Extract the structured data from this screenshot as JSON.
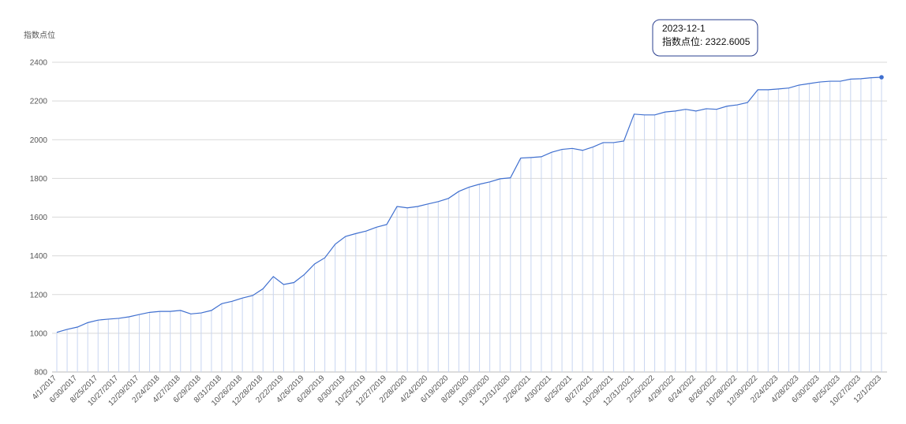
{
  "chart_data": {
    "type": "line",
    "y_axis_label": "指数点位",
    "categories": [
      "4/1/2017",
      null,
      "6/30/2017",
      null,
      "8/25/2017",
      null,
      "10/27/2017",
      null,
      "12/29/2017",
      null,
      "2/24/2018",
      null,
      "4/27/2018",
      null,
      "6/29/2018",
      null,
      "8/31/2018",
      null,
      "10/26/2018",
      null,
      "12/28/2018",
      null,
      "2/22/2019",
      null,
      "4/26/2019",
      null,
      "6/28/2019",
      null,
      "8/30/2019",
      null,
      "10/25/2019",
      null,
      "12/27/2019",
      null,
      "2/28/2020",
      null,
      "4/24/2020",
      null,
      "6/19/2020",
      null,
      "8/28/2020",
      null,
      "10/30/2020",
      null,
      "12/31/2020",
      null,
      "2/26/2021",
      null,
      "4/30/2021",
      null,
      "6/25/2021",
      null,
      "8/27/2021",
      null,
      "10/29/2021",
      null,
      "12/31/2021",
      null,
      "2/25/2022",
      null,
      "4/29/2022",
      null,
      "6/24/2022",
      null,
      "8/26/2022",
      null,
      "10/28/2022",
      null,
      "12/30/2022",
      null,
      "2/24/2023",
      null,
      "4/28/2023",
      null,
      "6/30/2023",
      null,
      "8/25/2023",
      null,
      "10/27/2023",
      null,
      "12/1/2023"
    ],
    "series": [
      {
        "name": "指数点位",
        "color": "#3f6fcf",
        "values": [
          1005,
          1020,
          1032,
          1055,
          1068,
          1073,
          1077,
          1085,
          1097,
          1108,
          1113,
          1113,
          1118,
          1100,
          1105,
          1118,
          1153,
          1165,
          1182,
          1195,
          1230,
          1293,
          1252,
          1262,
          1303,
          1358,
          1390,
          1460,
          1500,
          1515,
          1528,
          1548,
          1562,
          1655,
          1648,
          1655,
          1668,
          1680,
          1697,
          1733,
          1755,
          1770,
          1782,
          1798,
          1803,
          1905,
          1908,
          1912,
          1935,
          1950,
          1955,
          1945,
          1962,
          1985,
          1985,
          1993,
          2132,
          2128,
          2128,
          2143,
          2148,
          2157,
          2148,
          2160,
          2157,
          2173,
          2180,
          2192,
          2258,
          2258,
          2262,
          2267,
          2282,
          2290,
          2298,
          2302,
          2302,
          2313,
          2315,
          2320,
          2322.6005
        ]
      }
    ],
    "ylim": [
      800,
      2400
    ],
    "yticks": [
      800,
      1000,
      1200,
      1400,
      1600,
      1800,
      2000,
      2200,
      2400
    ],
    "grid": true,
    "drop_line_color": "#c8d5f0",
    "tooltip": {
      "title": "2023-12-1",
      "text": "指数点位: 2322.6005"
    }
  }
}
